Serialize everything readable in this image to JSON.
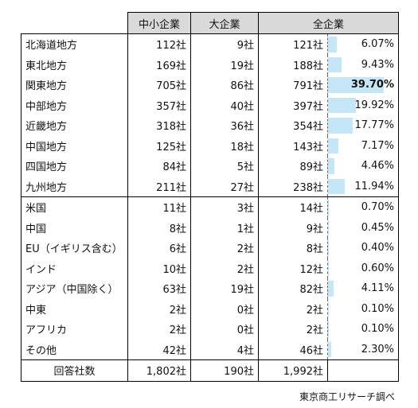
{
  "header": {
    "col_sme": "中小企業",
    "col_large": "大企業",
    "col_all": "全企業"
  },
  "domestic_rows": [
    {
      "region": "北海道地方",
      "sme": "112社",
      "large": "9社",
      "all": "121社",
      "pct": "6.07%",
      "pct_value": 6.07
    },
    {
      "region": "東北地方",
      "sme": "169社",
      "large": "19社",
      "all": "188社",
      "pct": "9.43%",
      "pct_value": 9.43
    },
    {
      "region": "関東地方",
      "sme": "705社",
      "large": "86社",
      "all": "791社",
      "pct": "39.70%",
      "pct_value": 39.7
    },
    {
      "region": "中部地方",
      "sme": "357社",
      "large": "40社",
      "all": "397社",
      "pct": "19.92%",
      "pct_value": 19.92
    },
    {
      "region": "近畿地方",
      "sme": "318社",
      "large": "36社",
      "all": "354社",
      "pct": "17.77%",
      "pct_value": 17.77
    },
    {
      "region": "中国地方",
      "sme": "125社",
      "large": "18社",
      "all": "143社",
      "pct": "7.17%",
      "pct_value": 7.17
    },
    {
      "region": "四国地方",
      "sme": "84社",
      "large": "5社",
      "all": "89社",
      "pct": "4.46%",
      "pct_value": 4.46
    },
    {
      "region": "九州地方",
      "sme": "211社",
      "large": "27社",
      "all": "238社",
      "pct": "11.94%",
      "pct_value": 11.94
    }
  ],
  "overseas_rows": [
    {
      "region": "米国",
      "sme": "11社",
      "large": "3社",
      "all": "14社",
      "pct": "0.70%",
      "pct_value": 0.7
    },
    {
      "region": "中国",
      "sme": "8社",
      "large": "1社",
      "all": "9社",
      "pct": "0.45%",
      "pct_value": 0.45
    },
    {
      "region": "EU（イギリス含む）",
      "sme": "6社",
      "large": "2社",
      "all": "8社",
      "pct": "0.40%",
      "pct_value": 0.4
    },
    {
      "region": "インド",
      "sme": "10社",
      "large": "2社",
      "all": "12社",
      "pct": "0.60%",
      "pct_value": 0.6
    },
    {
      "region": "アジア（中国除く）",
      "sme": "63社",
      "large": "19社",
      "all": "82社",
      "pct": "4.11%",
      "pct_value": 4.11
    },
    {
      "region": "中東",
      "sme": "2社",
      "large": "0社",
      "all": "2社",
      "pct": "0.10%",
      "pct_value": 0.1
    },
    {
      "region": "アフリカ",
      "sme": "2社",
      "large": "0社",
      "all": "2社",
      "pct": "0.10%",
      "pct_value": 0.1
    },
    {
      "region": "その他",
      "sme": "42社",
      "large": "4社",
      "all": "46社",
      "pct": "2.30%",
      "pct_value": 2.3
    }
  ],
  "total": {
    "label": "回答社数",
    "sme": "1,802社",
    "large": "190社",
    "all": "1,992社"
  },
  "footnote": "東京商工リサーチ調べ",
  "colors": {
    "header_bg": "#d9d9d9",
    "bar": "#c5e6f7",
    "border": "#000000"
  }
}
